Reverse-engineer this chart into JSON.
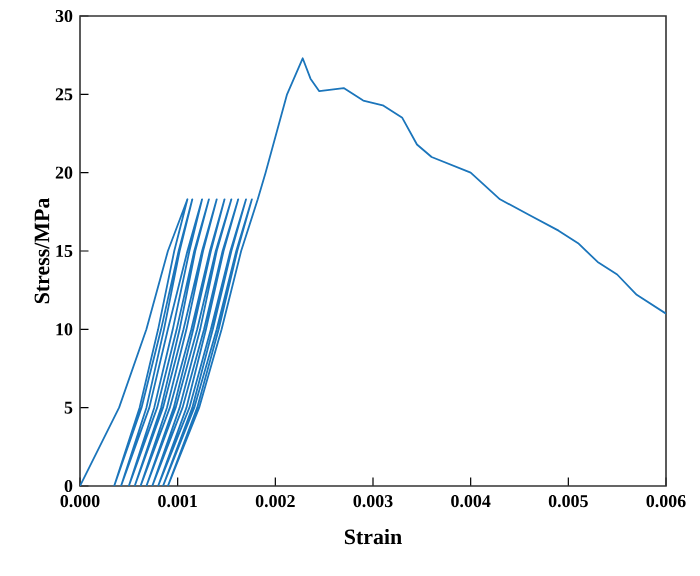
{
  "chart_data": {
    "type": "line",
    "xlabel": "Strain",
    "ylabel": "Stress/MPa",
    "xlim": [
      0,
      0.006
    ],
    "ylim": [
      0,
      30
    ],
    "xticks": [
      {
        "value": 0,
        "label": "0.000"
      },
      {
        "value": 0.001,
        "label": "0.001"
      },
      {
        "value": 0.002,
        "label": "0.002"
      },
      {
        "value": 0.003,
        "label": "0.003"
      },
      {
        "value": 0.004,
        "label": "0.004"
      },
      {
        "value": 0.005,
        "label": "0.005"
      },
      {
        "value": 0.006,
        "label": "0.006"
      }
    ],
    "yticks": [
      0,
      5,
      10,
      15,
      20,
      25,
      30
    ],
    "marker": "none",
    "line_style": "solid",
    "series": [
      {
        "color": "#1b75bb",
        "x": [
          0,
          0.0004,
          0.00068,
          0.0009,
          0.0011,
          0.000965,
          0.0008,
          0.00061,
          0.00035,
          0.00063,
          0.00083,
          0.00101,
          0.00115,
          0.00102,
          0.00086,
          0.00068,
          0.00042,
          0.00071,
          0.0009,
          0.0011,
          0.00125,
          0.00112,
          0.00095,
          0.00076,
          0.0005,
          0.00079,
          0.00099,
          0.00117,
          0.00132,
          0.00118,
          0.00102,
          0.00083,
          0.00056,
          0.00085,
          0.00106,
          0.00125,
          0.0014,
          0.00126,
          0.00109,
          0.00089,
          0.00062,
          0.00092,
          0.00114,
          0.00133,
          0.00148,
          0.00134,
          0.00116,
          0.00096,
          0.00068,
          0.00098,
          0.0012,
          0.00139,
          0.00155,
          0.0014,
          0.00123,
          0.00102,
          0.00074,
          0.00105,
          0.00127,
          0.00146,
          0.00162,
          0.00147,
          0.00129,
          0.00109,
          0.0008,
          0.00112,
          0.00134,
          0.00154,
          0.0017,
          0.00155,
          0.00136,
          0.00115,
          0.00085,
          0.00117,
          0.0014,
          0.0016,
          0.00176,
          0.00161,
          0.00142,
          0.0012,
          0.0009,
          0.00122,
          0.00145,
          0.00165,
          0.00182,
          0.0019,
          0.00212,
          0.00228,
          0.00236,
          0.00245,
          0.0027,
          0.0029,
          0.0031,
          0.0033,
          0.00345,
          0.0036,
          0.004,
          0.0043,
          0.0046,
          0.0049,
          0.0051,
          0.0053,
          0.0055,
          0.0057,
          0.006
        ],
        "values": [
          0,
          5,
          10,
          15,
          18.3,
          15,
          10,
          5,
          0,
          5,
          10,
          15,
          18.3,
          15,
          10,
          5,
          0,
          5,
          10,
          15,
          18.3,
          15,
          10,
          5,
          0,
          5,
          10,
          15,
          18.3,
          15,
          10,
          5,
          0,
          5,
          10,
          15,
          18.3,
          15,
          10,
          5,
          0,
          5,
          10,
          15,
          18.3,
          15,
          10,
          5,
          0,
          5,
          10,
          15,
          18.3,
          15,
          10,
          5,
          0,
          5,
          10,
          15,
          18.3,
          15,
          10,
          5,
          0,
          5,
          10,
          15,
          18.3,
          15,
          10,
          5,
          0,
          5,
          10,
          15,
          18.3,
          15,
          10,
          5,
          0,
          5,
          10,
          15,
          18.3,
          20,
          25,
          27.3,
          26,
          25.2,
          25.4,
          24.6,
          24.3,
          23.5,
          21.8,
          21,
          20,
          18.3,
          17.3,
          16.3,
          15.5,
          14.3,
          13.5,
          12.2,
          11
        ]
      }
    ]
  }
}
